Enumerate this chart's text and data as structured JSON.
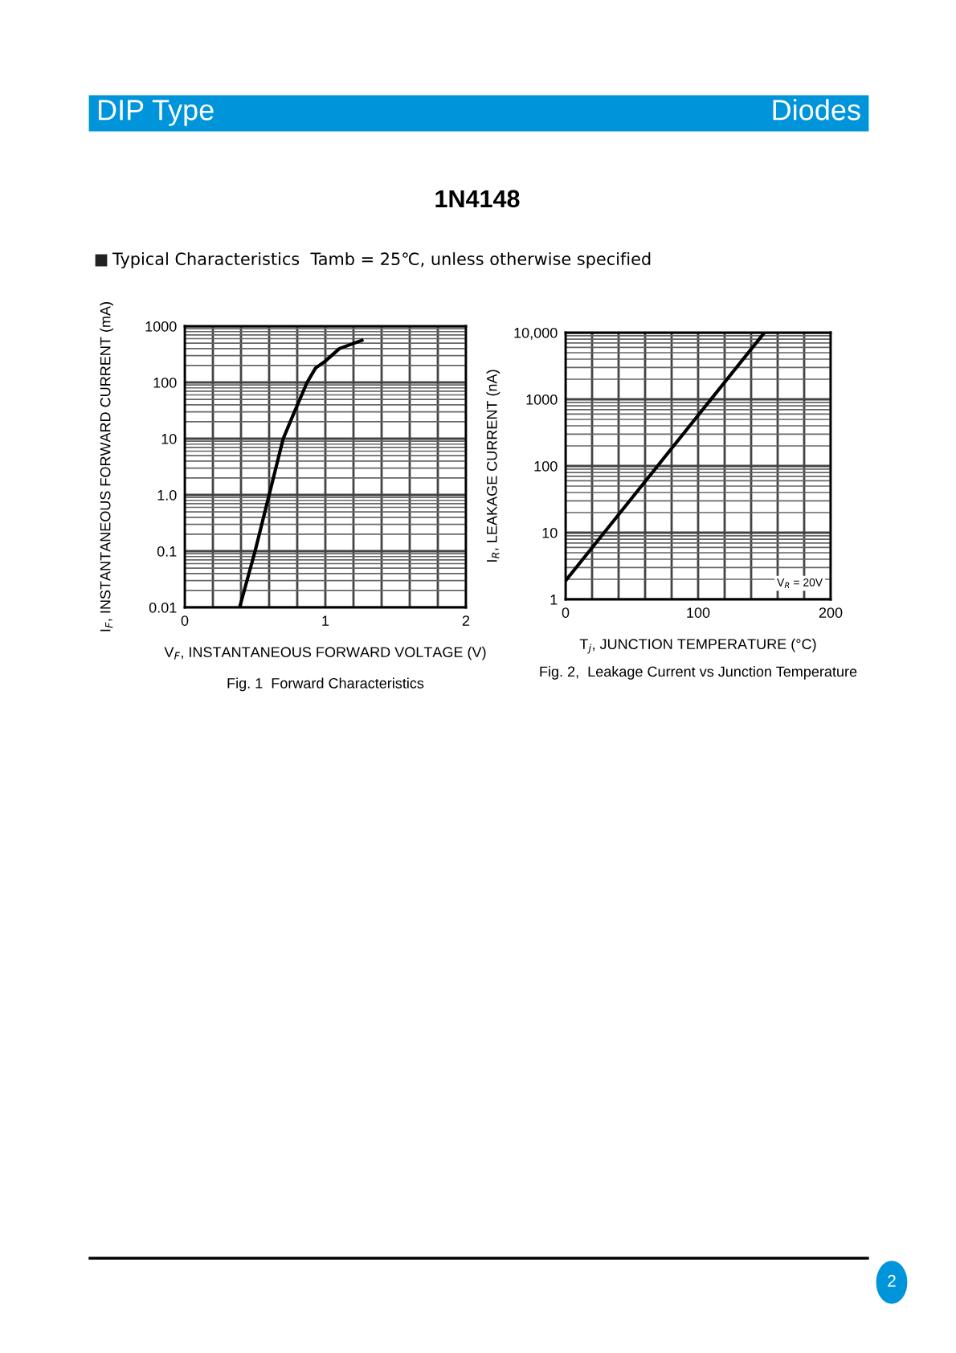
{
  "chart_data": [
    {
      "type": "line",
      "title": "Fig. 1  Forward Characteristics",
      "xlabel": "V$_{F}$, INSTANTANEOUS FORWARD VOLTAGE (V)",
      "ylabel": "I$_{F}$, INSTANTANEOUS FORWARD CURRENT (mA)",
      "annotations": [
        "DIP Type",
        "Diodes",
        "1N4148",
        "Typical Characteristics  Tamb = 25℃, unless otherwise specified",
        "2"
      ],
      "log": "y",
      "grid": true,
      "marker": "none",
      "line_style": "solid",
      "xlim": [
        0,
        2
      ],
      "xticks": [
        0,
        {
          "value": 0.2,
          "label": null
        },
        {
          "value": 0.4,
          "label": null
        },
        {
          "value": 0.6,
          "label": null
        },
        {
          "value": 0.8,
          "label": null
        },
        1,
        {
          "value": 1.2,
          "label": null
        },
        {
          "value": 1.4,
          "label": null
        },
        {
          "value": 1.6,
          "label": null
        },
        {
          "value": 1.8,
          "label": null
        },
        2
      ],
      "ylim": [
        0.01,
        1000
      ],
      "yticks": [
        {
          "value": 0.01,
          "label": "0.01"
        },
        {
          "value": 0.1,
          "label": "0.1"
        },
        {
          "value": 1,
          "label": "1.0"
        },
        10,
        100,
        1000
      ],
      "series": [
        {
          "color": "#000000",
          "x": [
            0.39,
            0.5,
            0.6,
            0.7,
            0.78,
            0.87,
            0.93,
            1.0,
            1.1,
            1.26
          ],
          "values": [
            0.01,
            0.1,
            1,
            10,
            30,
            100,
            180,
            240,
            400,
            560
          ]
        }
      ]
    },
    {
      "type": "line",
      "title": "Fig. 2,  Leakage Current vs Junction Temperature",
      "xlabel": "T$_{j}$, JUNCTION TEMPERATURE (°C)",
      "ylabel": "I$_{R}$, LEAKAGE CURRENT (nA)",
      "annotations": [
        "V$_{R}$ = 20V"
      ],
      "log": "y",
      "grid": true,
      "marker": "none",
      "line_style": "solid",
      "xlim": [
        0,
        200
      ],
      "xticks": [
        0,
        {
          "value": 20,
          "label": null
        },
        {
          "value": 40,
          "label": null
        },
        {
          "value": 60,
          "label": null
        },
        {
          "value": 80,
          "label": null
        },
        100,
        {
          "value": 120,
          "label": null
        },
        {
          "value": 140,
          "label": null
        },
        {
          "value": 160,
          "label": null
        },
        {
          "value": 180,
          "label": null
        },
        200
      ],
      "ylim": [
        1,
        10000
      ],
      "yticks": [
        1,
        10,
        100,
        1000,
        {
          "value": 10000,
          "label": "10,000"
        }
      ],
      "series": [
        {
          "color": "#000000",
          "x": [
            0,
            150
          ],
          "values": [
            1.9,
            10000
          ]
        }
      ]
    }
  ]
}
